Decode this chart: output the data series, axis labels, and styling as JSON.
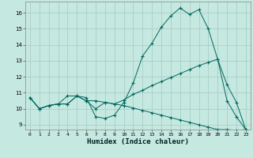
{
  "title": "",
  "xlabel": "Humidex (Indice chaleur)",
  "bg_color": "#c5e8e0",
  "grid_color": "#aacfc8",
  "line_color": "#006860",
  "xlim": [
    -0.5,
    23.5
  ],
  "ylim": [
    8.7,
    16.7
  ],
  "yticks": [
    9,
    10,
    11,
    12,
    13,
    14,
    15,
    16
  ],
  "xticks": [
    0,
    1,
    2,
    3,
    4,
    5,
    6,
    7,
    8,
    9,
    10,
    11,
    12,
    13,
    14,
    15,
    16,
    17,
    18,
    19,
    20,
    21,
    22,
    23
  ],
  "series": [
    [
      10.7,
      10.0,
      10.2,
      10.3,
      10.3,
      10.8,
      10.7,
      9.5,
      9.4,
      9.6,
      10.4,
      11.6,
      13.3,
      14.1,
      15.1,
      15.8,
      16.3,
      15.9,
      16.2,
      15.0,
      13.1,
      10.5,
      9.5,
      8.7
    ],
    [
      10.7,
      10.0,
      10.2,
      10.3,
      10.8,
      10.8,
      10.5,
      10.0,
      10.4,
      10.3,
      10.55,
      10.9,
      11.15,
      11.45,
      11.7,
      11.95,
      12.2,
      12.45,
      12.7,
      12.9,
      13.1,
      11.5,
      10.4,
      8.7
    ],
    [
      10.7,
      10.0,
      10.2,
      10.3,
      10.3,
      10.8,
      10.5,
      10.5,
      10.4,
      10.3,
      10.2,
      10.05,
      9.9,
      9.75,
      9.6,
      9.45,
      9.3,
      9.15,
      9.0,
      8.85,
      8.7,
      8.7,
      8.65,
      8.7
    ]
  ]
}
